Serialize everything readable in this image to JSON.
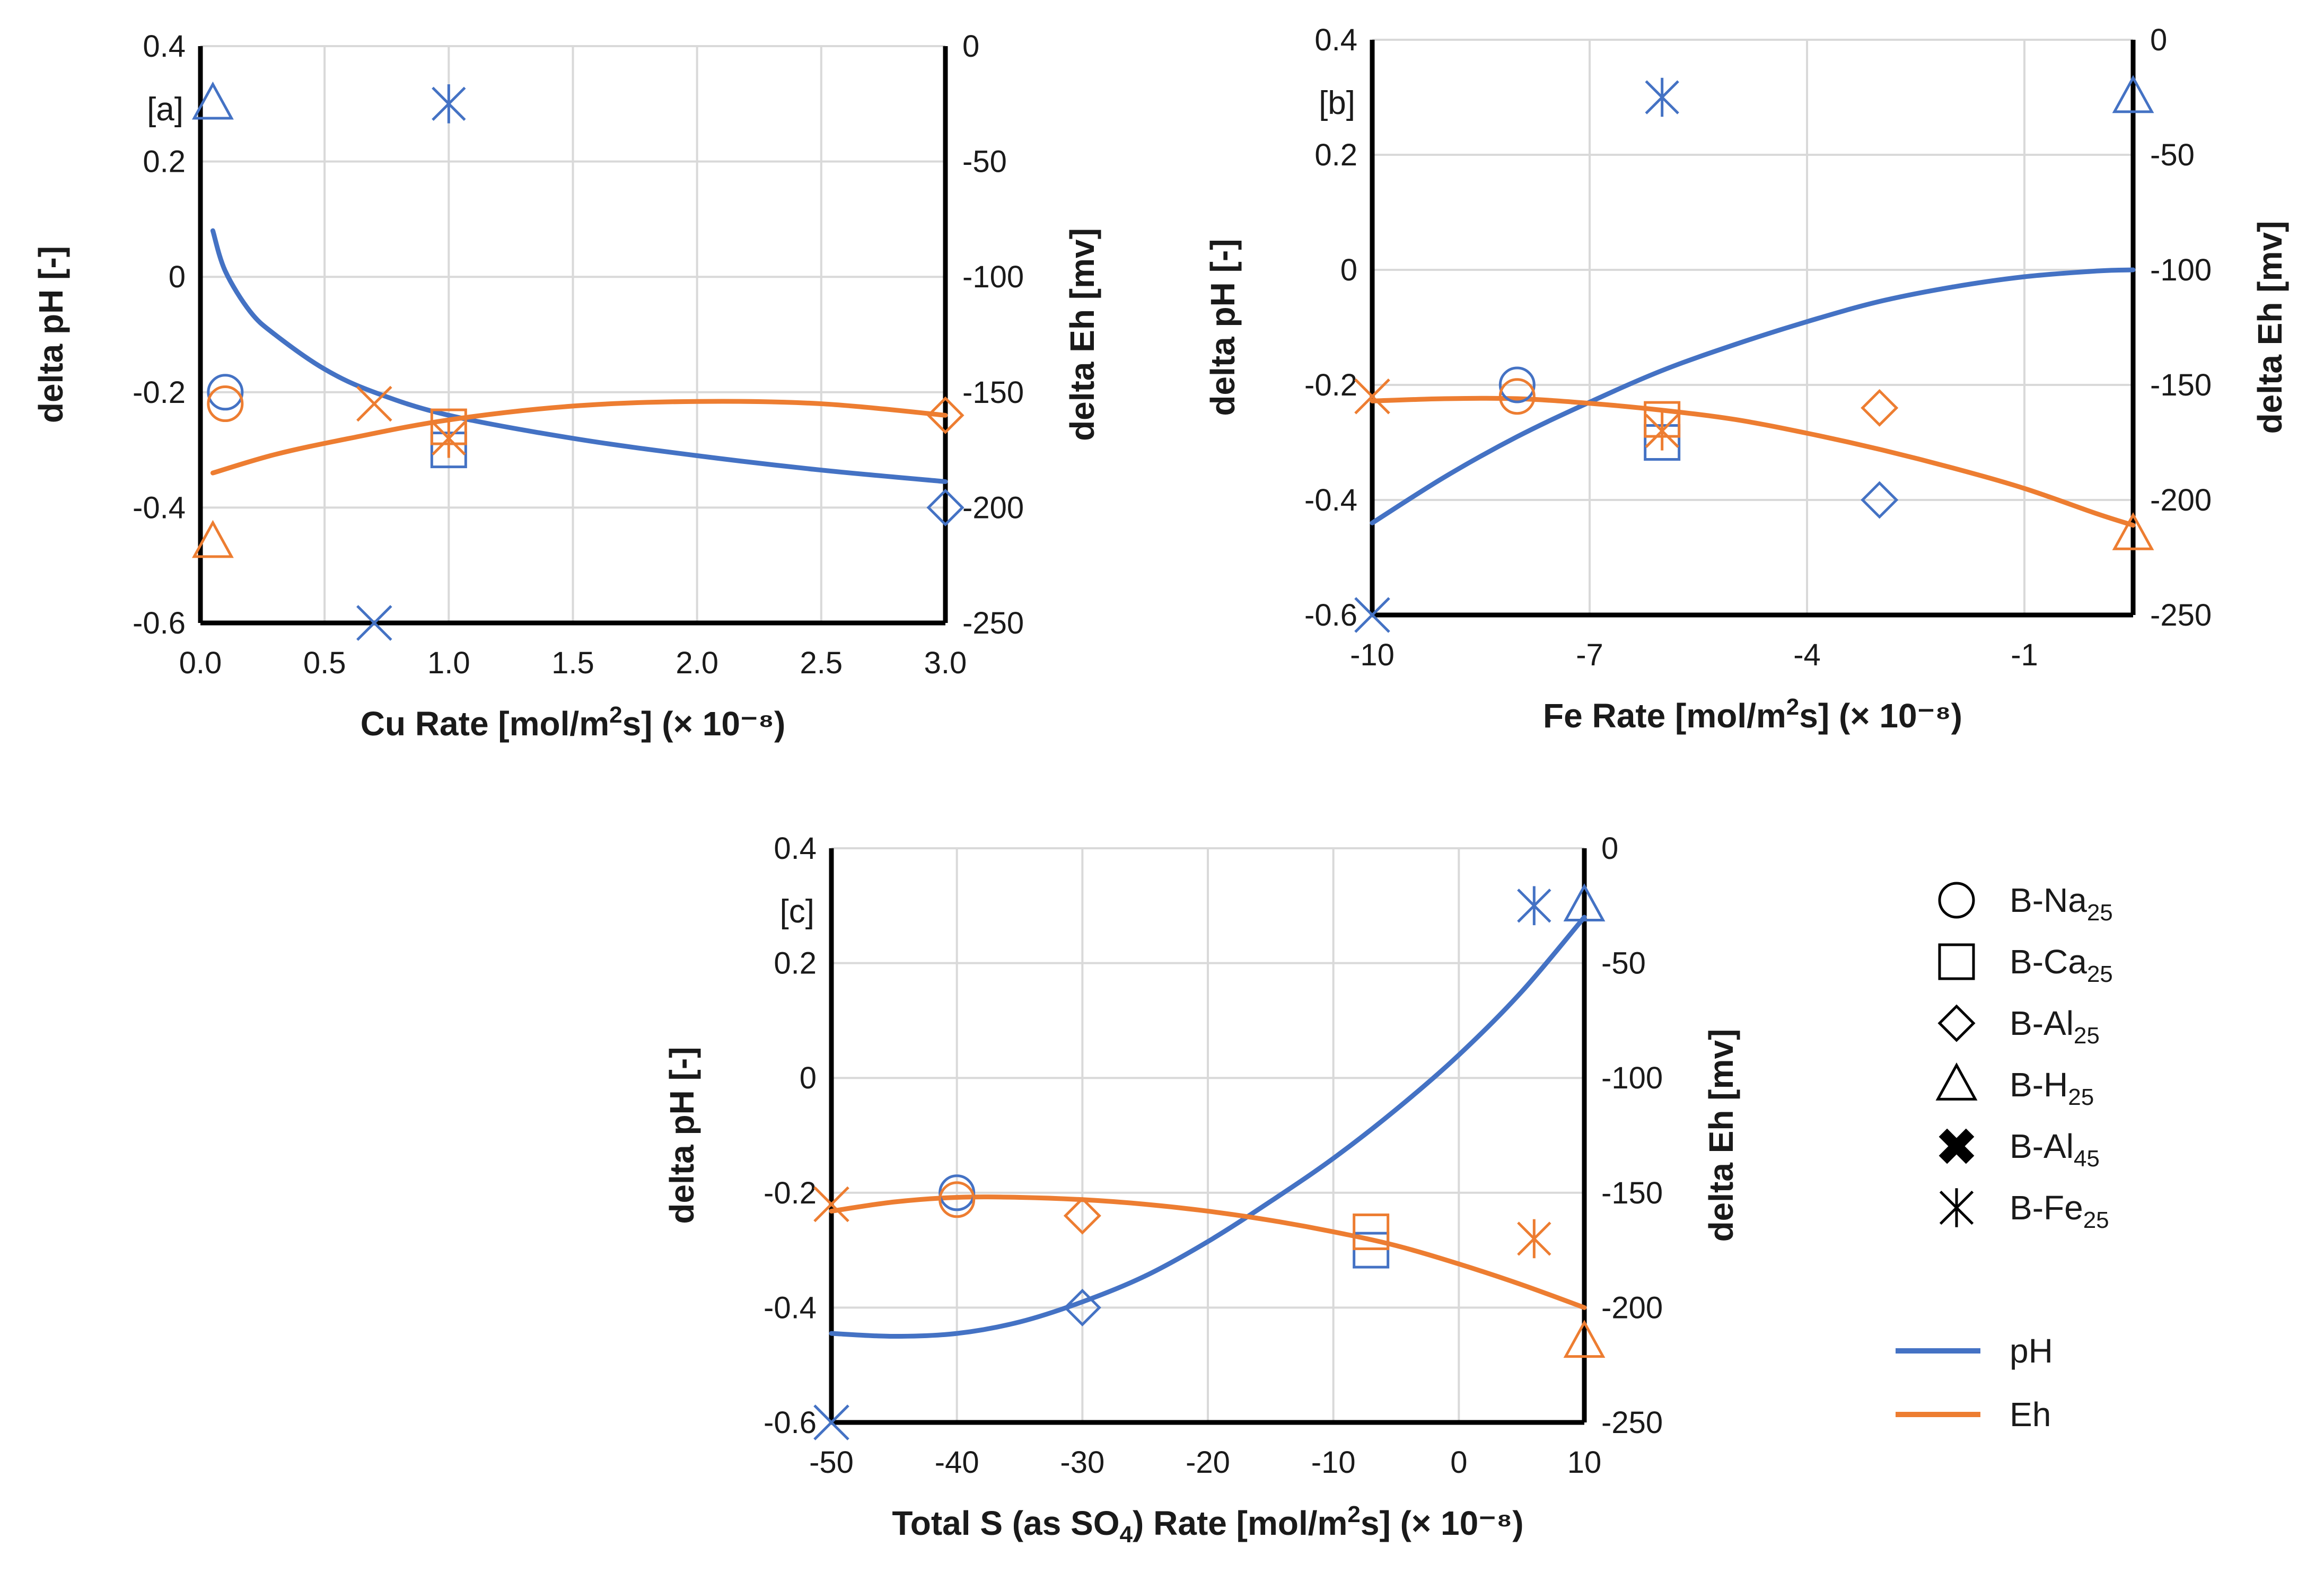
{
  "colors": {
    "ph": "#4472C4",
    "eh": "#ED7D31",
    "axis": "#000000",
    "grid": "#D9D9D9",
    "text": "#1a1a1a"
  },
  "x_exponent": "(× 10⁻⁸)",
  "legend": {
    "markers": [
      {
        "symbol": "circle",
        "base": "B-Na",
        "sub": "25"
      },
      {
        "symbol": "square",
        "base": "B-Ca",
        "sub": "25"
      },
      {
        "symbol": "diamond",
        "base": "B-Al",
        "sub": "25"
      },
      {
        "symbol": "triangle",
        "base": "B-H",
        "sub": "25"
      },
      {
        "symbol": "xbold",
        "base": "B-Al",
        "sub": "45"
      },
      {
        "symbol": "asterisk",
        "base": "B-Fe",
        "sub": "25"
      }
    ],
    "lines": [
      {
        "name": "pH",
        "color": "#4472C4"
      },
      {
        "name": "Eh",
        "color": "#ED7D31"
      }
    ]
  },
  "chart_data": [
    {
      "type": "scatter",
      "panel_label": "[a]",
      "xlabel": {
        "pre": "Cu Rate [mol/m",
        "sup": "2",
        "post": "s]"
      },
      "ylabel": "delta pH [-]",
      "y2label": "delta Eh [mv]",
      "xlim": [
        0,
        3
      ],
      "xticks": [
        0,
        0.5,
        1,
        1.5,
        2,
        2.5,
        3
      ],
      "xtick_labels": [
        "0.0",
        "0.5",
        "1.0",
        "1.5",
        "2.0",
        "2.5",
        "3.0"
      ],
      "ylim": [
        -0.6,
        0.4
      ],
      "yticks": [
        -0.6,
        -0.4,
        -0.2,
        0,
        0.2,
        0.4
      ],
      "ytick_labels": [
        "-0.6",
        "-0.4",
        "-0.2",
        "0",
        "0.2",
        "0.4"
      ],
      "y2lim": [
        -250,
        0
      ],
      "y2ticks": [
        -250,
        -200,
        -150,
        -100,
        -50,
        0
      ],
      "y2tick_labels": [
        "-250",
        "-200",
        "-150",
        "-100",
        "-50",
        "0"
      ],
      "points": [
        {
          "series": "pH",
          "symbol": "circle",
          "x": 0.1,
          "y": -0.2
        },
        {
          "series": "pH",
          "symbol": "square",
          "x": 1.0,
          "y": -0.3
        },
        {
          "series": "pH",
          "symbol": "diamond",
          "x": 3.0,
          "y": -0.4
        },
        {
          "series": "pH",
          "symbol": "triangle",
          "x": 0.05,
          "y": 0.3
        },
        {
          "series": "pH",
          "symbol": "x",
          "x": 0.7,
          "y": -0.6
        },
        {
          "series": "pH",
          "symbol": "asterisk",
          "x": 1.0,
          "y": 0.3
        },
        {
          "series": "Eh",
          "symbol": "circle",
          "x": 0.1,
          "y2": -155
        },
        {
          "series": "Eh",
          "symbol": "square",
          "x": 1.0,
          "y2": -165
        },
        {
          "series": "Eh",
          "symbol": "diamond",
          "x": 3.0,
          "y2": -160
        },
        {
          "series": "Eh",
          "symbol": "triangle",
          "x": 0.05,
          "y2": -215
        },
        {
          "series": "Eh",
          "symbol": "x",
          "x": 0.7,
          "y2": -155
        },
        {
          "series": "Eh",
          "symbol": "asterisk",
          "x": 1.0,
          "y2": -170
        }
      ],
      "curves": [
        {
          "series": "pH",
          "axis": "y",
          "x": [
            0.05,
            0.1,
            0.2,
            0.3,
            0.5,
            0.7,
            1.0,
            1.5,
            2.0,
            2.5,
            3.0
          ],
          "y": [
            0.08,
            0.01,
            -0.06,
            -0.1,
            -0.16,
            -0.2,
            -0.24,
            -0.28,
            -0.31,
            -0.335,
            -0.355
          ]
        },
        {
          "series": "Eh",
          "axis": "y2",
          "x": [
            0.05,
            0.3,
            0.6,
            1.0,
            1.5,
            2.0,
            2.5,
            3.0
          ],
          "y": [
            -185,
            -177,
            -170,
            -162,
            -156,
            -154,
            -155,
            -160
          ]
        }
      ]
    },
    {
      "type": "scatter",
      "panel_label": "[b]",
      "xlabel": {
        "pre": "Fe Rate [mol/m",
        "sup": "2",
        "post": "s]"
      },
      "ylabel": "delta pH [-]",
      "y2label": "delta Eh [mv]",
      "xlim": [
        -10,
        0.5
      ],
      "xticks": [
        -10,
        -7,
        -4,
        -1
      ],
      "xtick_labels": [
        "-10",
        "-7",
        "-4",
        "-1"
      ],
      "ylim": [
        -0.6,
        0.4
      ],
      "yticks": [
        -0.6,
        -0.4,
        -0.2,
        0,
        0.2,
        0.4
      ],
      "ytick_labels": [
        "-0.6",
        "-0.4",
        "-0.2",
        "0",
        "0.2",
        "0.4"
      ],
      "y2lim": [
        -250,
        0
      ],
      "y2ticks": [
        -250,
        -200,
        -150,
        -100,
        -50,
        0
      ],
      "y2tick_labels": [
        "-250",
        "-200",
        "-150",
        "-100",
        "-50",
        "0"
      ],
      "points": [
        {
          "series": "pH",
          "symbol": "circle",
          "x": -8,
          "y": -0.2
        },
        {
          "series": "pH",
          "symbol": "square",
          "x": -6,
          "y": -0.3
        },
        {
          "series": "pH",
          "symbol": "diamond",
          "x": -3,
          "y": -0.4
        },
        {
          "series": "pH",
          "symbol": "triangle",
          "x": 0.5,
          "y": 0.3
        },
        {
          "series": "pH",
          "symbol": "x",
          "x": -10,
          "y": -0.6
        },
        {
          "series": "pH",
          "symbol": "asterisk",
          "x": -6,
          "y": 0.3
        },
        {
          "series": "Eh",
          "symbol": "circle",
          "x": -8,
          "y2": -155
        },
        {
          "series": "Eh",
          "symbol": "square",
          "x": -6,
          "y2": -165
        },
        {
          "series": "Eh",
          "symbol": "diamond",
          "x": -3,
          "y2": -160
        },
        {
          "series": "Eh",
          "symbol": "triangle",
          "x": 0.5,
          "y2": -215
        },
        {
          "series": "Eh",
          "symbol": "x",
          "x": -10,
          "y2": -155
        },
        {
          "series": "Eh",
          "symbol": "asterisk",
          "x": -6,
          "y2": -170
        }
      ],
      "curves": [
        {
          "series": "pH",
          "axis": "y",
          "x": [
            -10,
            -9,
            -8,
            -7,
            -6,
            -5,
            -4,
            -3,
            -2,
            -1,
            0,
            0.5
          ],
          "y": [
            -0.44,
            -0.36,
            -0.29,
            -0.23,
            -0.175,
            -0.13,
            -0.09,
            -0.055,
            -0.03,
            -0.012,
            -0.002,
            0.0
          ]
        },
        {
          "series": "Eh",
          "axis": "y2",
          "x": [
            -10,
            -9,
            -8,
            -7,
            -6,
            -5,
            -4,
            -3,
            -2,
            -1,
            0,
            0.5
          ],
          "y": [
            -157,
            -156,
            -156,
            -158,
            -161,
            -165,
            -171,
            -178,
            -186,
            -195,
            -206,
            -211
          ]
        }
      ]
    },
    {
      "type": "scatter",
      "panel_label": "[c]",
      "xlabel": {
        "pre": "Total S (as SO",
        "sub": "4",
        "mid": ") Rate [mol/m",
        "sup": "2",
        "post": "s]"
      },
      "ylabel": "delta pH [-]",
      "y2label": "delta Eh [mv]",
      "xlim": [
        -50,
        10
      ],
      "xticks": [
        -50,
        -40,
        -30,
        -20,
        -10,
        0,
        10
      ],
      "xtick_labels": [
        "-50",
        "-40",
        "-30",
        "-20",
        "-10",
        "0",
        "10"
      ],
      "ylim": [
        -0.6,
        0.4
      ],
      "yticks": [
        -0.6,
        -0.4,
        -0.2,
        0,
        0.2,
        0.4
      ],
      "ytick_labels": [
        "-0.6",
        "-0.4",
        "-0.2",
        "0",
        "0.2",
        "0.4"
      ],
      "y2lim": [
        -250,
        0
      ],
      "y2ticks": [
        -250,
        -200,
        -150,
        -100,
        -50,
        0
      ],
      "y2tick_labels": [
        "-250",
        "-200",
        "-150",
        "-100",
        "-50",
        "0"
      ],
      "points": [
        {
          "series": "pH",
          "symbol": "circle",
          "x": -40,
          "y": -0.2
        },
        {
          "series": "pH",
          "symbol": "square",
          "x": -7,
          "y": -0.3
        },
        {
          "series": "pH",
          "symbol": "diamond",
          "x": -30,
          "y": -0.4
        },
        {
          "series": "pH",
          "symbol": "triangle",
          "x": 10,
          "y": 0.3
        },
        {
          "series": "pH",
          "symbol": "x",
          "x": -50,
          "y": -0.6
        },
        {
          "series": "pH",
          "symbol": "asterisk",
          "x": 6,
          "y": 0.3
        },
        {
          "series": "Eh",
          "symbol": "circle",
          "x": -40,
          "y2": -153
        },
        {
          "series": "Eh",
          "symbol": "square",
          "x": -7,
          "y2": -167
        },
        {
          "series": "Eh",
          "symbol": "diamond",
          "x": -30,
          "y2": -160
        },
        {
          "series": "Eh",
          "symbol": "triangle",
          "x": 10,
          "y2": -215
        },
        {
          "series": "Eh",
          "symbol": "x",
          "x": -50,
          "y2": -155
        },
        {
          "series": "Eh",
          "symbol": "asterisk",
          "x": 6,
          "y2": -170
        }
      ],
      "curves": [
        {
          "series": "pH",
          "axis": "y",
          "x": [
            -50,
            -45,
            -40,
            -35,
            -30,
            -25,
            -20,
            -15,
            -10,
            -5,
            0,
            5,
            10
          ],
          "y": [
            -0.445,
            -0.45,
            -0.445,
            -0.425,
            -0.39,
            -0.345,
            -0.285,
            -0.215,
            -0.14,
            -0.055,
            0.04,
            0.15,
            0.28
          ]
        },
        {
          "series": "Eh",
          "axis": "y2",
          "x": [
            -50,
            -45,
            -40,
            -35,
            -30,
            -25,
            -20,
            -15,
            -10,
            -5,
            0,
            5,
            10
          ],
          "y": [
            -158,
            -154,
            -152,
            -152,
            -153,
            -155,
            -158,
            -162,
            -167,
            -173,
            -181,
            -190,
            -200
          ]
        }
      ]
    }
  ]
}
